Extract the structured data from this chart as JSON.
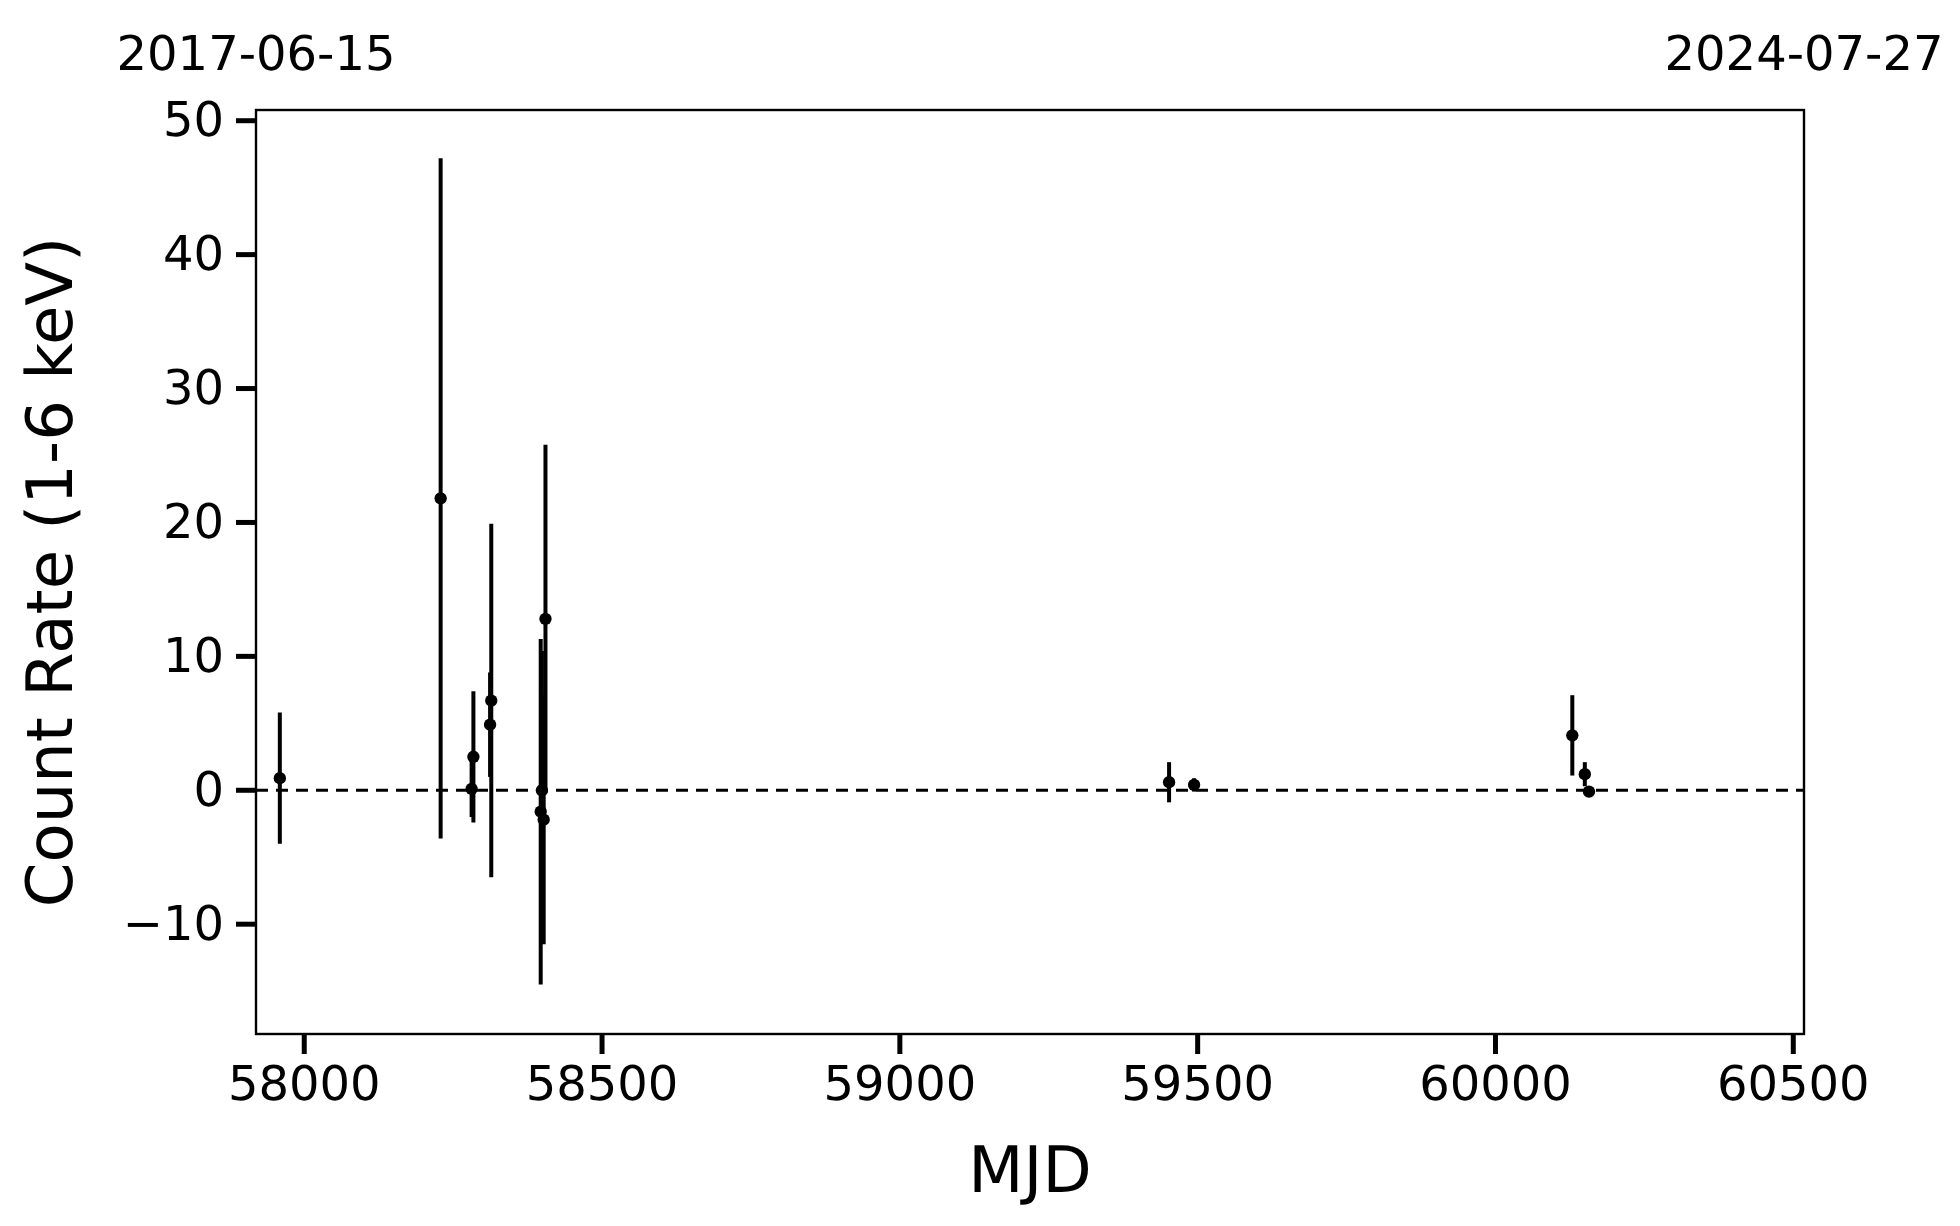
{
  "chart_data": {
    "type": "scatter",
    "xlabel": "MJD",
    "ylabel": "Count Rate (1-6 keV)",
    "x": [
      57959,
      58229,
      58281,
      58284,
      58312,
      58314,
      58397,
      58399,
      58402,
      58405,
      59452,
      59494,
      60129,
      60150,
      60157
    ],
    "series": [
      {
        "color": "#000000",
        "values": [
          0.9,
          21.8,
          0.1,
          2.5,
          4.9,
          6.7,
          -1.6,
          0.0,
          -2.2,
          12.8,
          0.6,
          0.4,
          4.1,
          1.2,
          -0.1
        ],
        "errors": [
          4.9,
          25.4,
          2.1,
          4.9,
          3.9,
          13.2,
          12.9,
          10.4,
          9.3,
          13.0,
          1.5,
          0.5,
          3.0,
          0.9,
          0.4
        ]
      }
    ],
    "marker": "circle",
    "xlim": [
      57919,
      60518
    ],
    "xticks": [
      58000,
      58500,
      59000,
      59500,
      60000,
      60500
    ],
    "ylim": [
      -18.2,
      50.8
    ],
    "yticks": [
      {
        "value": -10,
        "label": "−10"
      },
      0,
      10,
      20,
      30,
      40,
      50
    ],
    "x2lim": [
      "2017-06-15",
      "2024-07-27"
    ],
    "x2ticks": [
      "2017-06-15",
      "2024-07-27"
    ],
    "ref_lines": [
      {
        "axis": "y",
        "value": 0,
        "label": null,
        "color": "#000000",
        "line_style": "dashed"
      }
    ],
    "grid": false
  }
}
